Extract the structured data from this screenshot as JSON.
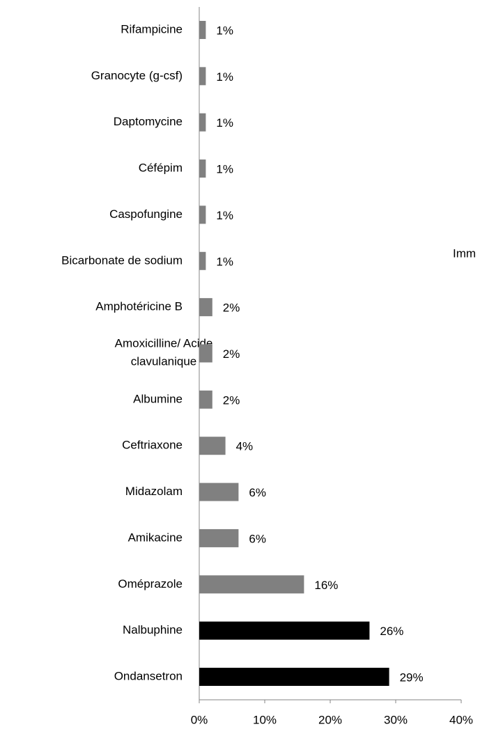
{
  "chart_data": {
    "type": "barh",
    "categories": [
      "Rifampicine",
      "Granocyte (g-csf)",
      "Daptomycine",
      "Céfépim",
      "Caspofungine",
      "Bicarbonate de sodium",
      "Amphotéricine B",
      "Amoxicilline/ Acide clavulanique",
      "Albumine",
      "Ceftriaxone",
      "Midazolam",
      "Amikacine",
      "Oméprazole",
      "Nalbuphine",
      "Ondansetron"
    ],
    "values": [
      1,
      1,
      1,
      1,
      1,
      1,
      2,
      2,
      2,
      4,
      6,
      6,
      16,
      26,
      29
    ],
    "value_labels": [
      "1%",
      "1%",
      "1%",
      "1%",
      "1%",
      "1%",
      "2%",
      "2%",
      "2%",
      "4%",
      "6%",
      "6%",
      "16%",
      "26%",
      "29%"
    ],
    "colors": [
      "#808080",
      "#808080",
      "#808080",
      "#808080",
      "#808080",
      "#808080",
      "#808080",
      "#808080",
      "#808080",
      "#808080",
      "#808080",
      "#808080",
      "#808080",
      "#000000",
      "#000000"
    ],
    "xlim": [
      0,
      40
    ],
    "xticks": [
      {
        "value": 0,
        "label": "0%"
      },
      {
        "value": 10,
        "label": "10%"
      },
      {
        "value": 20,
        "label": "20%"
      },
      {
        "value": 30,
        "label": "30%"
      },
      {
        "value": 40,
        "label": "40%"
      }
    ],
    "annotations": [
      "Imm"
    ],
    "grid": false
  }
}
